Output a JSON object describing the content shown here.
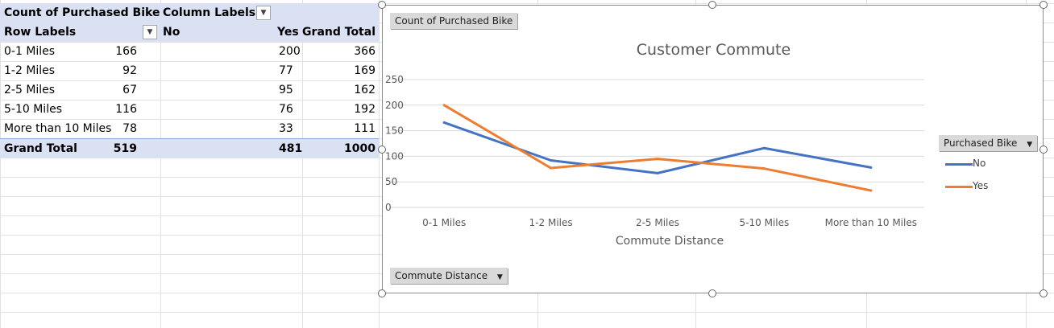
{
  "pivot": {
    "header1": {
      "title": "Count of Purchased Bike",
      "column_labels": "Column Labels"
    },
    "header2": {
      "row_labels": "Row Labels",
      "no": "No",
      "yes": "Yes",
      "grand_total": "Grand Total"
    },
    "rows": [
      {
        "label": "0-1 Miles",
        "no": "166",
        "yes": "200",
        "total": "366"
      },
      {
        "label": "1-2 Miles",
        "no": "92",
        "yes": "77",
        "total": "169"
      },
      {
        "label": "2-5 Miles",
        "no": "67",
        "yes": "95",
        "total": "162"
      },
      {
        "label": "5-10 Miles",
        "no": "116",
        "yes": "76",
        "total": "192"
      },
      {
        "label": "More than 10 Miles",
        "no": "78",
        "yes": "33",
        "total": "111"
      }
    ],
    "grand_total": {
      "label": "Grand Total",
      "no": "519",
      "yes": "481",
      "total": "1000"
    }
  },
  "chart": {
    "value_field_button": "Count of Purchased Bike",
    "axis_field_button": "Commute Distance",
    "legend_field_button": "Purchased Bike"
  },
  "chart_data": {
    "type": "line",
    "title": "Customer Commute",
    "xlabel": "Commute Distance",
    "ylabel": "",
    "categories": [
      "0-1 Miles",
      "1-2 Miles",
      "2-5 Miles",
      "5-10 Miles",
      "More than 10 Miles"
    ],
    "series": [
      {
        "name": "No",
        "values": [
          166,
          92,
          67,
          116,
          78
        ],
        "color": "#4472c4"
      },
      {
        "name": "Yes",
        "values": [
          200,
          77,
          95,
          76,
          33
        ],
        "color": "#ed7d31"
      }
    ],
    "ylim": [
      0,
      250
    ],
    "yticks": [
      0,
      50,
      100,
      150,
      200,
      250
    ],
    "grid": true,
    "legend_position": "right"
  },
  "icons": {
    "filter_dropdown": "dropdown-arrow-icon",
    "sort_filter": "sort-filter-icon",
    "field_dropdown": "dropdown-arrow-icon"
  }
}
